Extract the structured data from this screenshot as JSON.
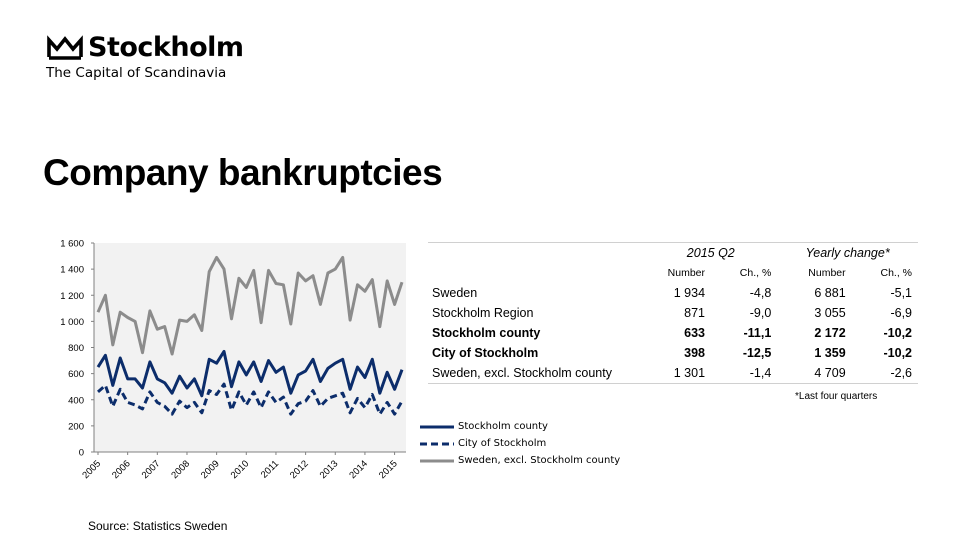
{
  "logo": {
    "name": "Stockholm",
    "tagline": "The Capital of Scandinavia",
    "icon": "crown-icon"
  },
  "title": "Company bankruptcies",
  "source": "Source: Statistics Sweden",
  "colors": {
    "stockholm_county": "#0c2d6b",
    "city_of_stockholm": "#0c2d6b",
    "sweden_excl": "#8c8c8c",
    "plot_bg": "#f2f2f2"
  },
  "table": {
    "group_headers": [
      "2015 Q2",
      "Yearly change*"
    ],
    "sub_headers": [
      "Number",
      "Ch., %",
      "Number",
      "Ch., %"
    ],
    "rows": [
      {
        "label": "Sweden",
        "values": [
          "1 934",
          "-4,8",
          "6 881",
          "-5,1"
        ],
        "bold": false
      },
      {
        "label": "Stockholm Region",
        "values": [
          "871",
          "-9,0",
          "3 055",
          "-6,9"
        ],
        "bold": false
      },
      {
        "label": "Stockholm county",
        "values": [
          "633",
          "-11,1",
          "2 172",
          "-10,2"
        ],
        "bold": true
      },
      {
        "label": "City of Stockholm",
        "values": [
          "398",
          "-12,5",
          "1 359",
          "-10,2"
        ],
        "bold": true
      },
      {
        "label": "Sweden, excl. Stockholm county",
        "values": [
          "1 301",
          "-1,4",
          "4 709",
          "-2,6"
        ],
        "bold": false
      }
    ],
    "footnote": "*Last four quarters"
  },
  "chart_data": {
    "type": "line",
    "ylim": [
      0,
      1600
    ],
    "y_ticks": [
      0,
      200,
      400,
      600,
      800,
      1000,
      1200,
      1400,
      1600
    ],
    "y_tick_labels": [
      "0",
      "200",
      "400",
      "600",
      "800",
      "1 000",
      "1 200",
      "1 400",
      "1 600"
    ],
    "x_tick_labels": [
      "2005",
      "2006",
      "2007",
      "2008",
      "2009",
      "2010",
      "2011",
      "2012",
      "2013",
      "2014",
      "2015"
    ],
    "grid": false,
    "legend_position": "bottom-right",
    "series": [
      {
        "name": "Stockholm county",
        "style": "solid",
        "color": "#0c2d6b",
        "values": [
          650,
          740,
          510,
          720,
          560,
          560,
          490,
          690,
          560,
          530,
          450,
          580,
          490,
          560,
          430,
          710,
          680,
          770,
          500,
          690,
          590,
          690,
          540,
          700,
          610,
          650,
          450,
          590,
          620,
          710,
          540,
          640,
          680,
          710,
          480,
          650,
          570,
          710,
          450,
          610,
          480,
          630
        ]
      },
      {
        "name": "City of Stockholm",
        "style": "dashed",
        "color": "#0c2d6b",
        "values": [
          460,
          510,
          350,
          480,
          380,
          360,
          330,
          460,
          380,
          350,
          290,
          390,
          340,
          380,
          300,
          470,
          440,
          520,
          320,
          460,
          360,
          460,
          340,
          460,
          380,
          420,
          290,
          370,
          390,
          470,
          350,
          410,
          430,
          450,
          300,
          410,
          340,
          440,
          290,
          380,
          290,
          390
        ]
      },
      {
        "name": "Sweden, excl. Stockholm county",
        "style": "solid",
        "color": "#8c8c8c",
        "values": [
          1070,
          1200,
          820,
          1070,
          1030,
          1000,
          760,
          1080,
          940,
          960,
          750,
          1010,
          1000,
          1050,
          930,
          1380,
          1490,
          1400,
          1020,
          1330,
          1260,
          1390,
          990,
          1390,
          1290,
          1280,
          980,
          1370,
          1310,
          1350,
          1130,
          1370,
          1400,
          1490,
          1010,
          1280,
          1230,
          1320,
          960,
          1310,
          1130,
          1300
        ]
      }
    ]
  }
}
